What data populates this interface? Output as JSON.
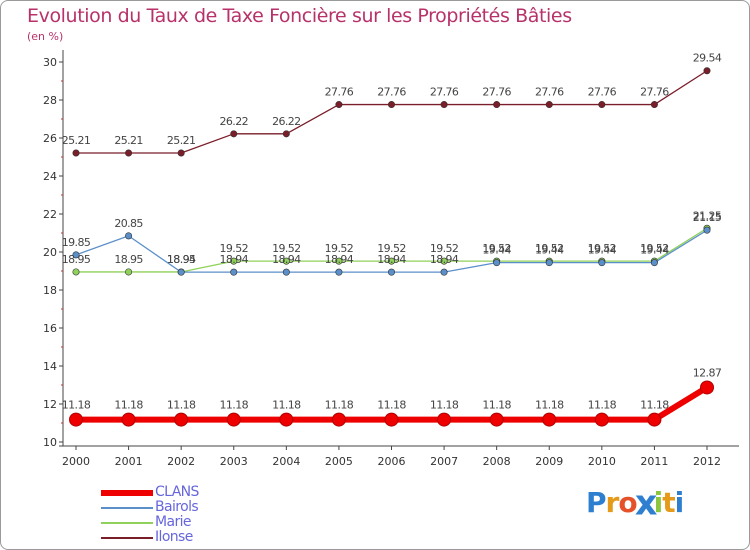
{
  "chart_data": {
    "type": "line",
    "title": "Evolution du Taux de Taxe Foncière sur les Propriétés Bâties",
    "ylabel": "(en %)",
    "xlabel": "",
    "ylim": [
      10,
      30
    ],
    "yticks": [
      "10",
      "12",
      "14",
      "16",
      "18",
      "20",
      "22",
      "24",
      "26",
      "28",
      "30"
    ],
    "categories": [
      "2000",
      "2001",
      "2002",
      "2003",
      "2004",
      "2005",
      "2006",
      "2007",
      "2008",
      "2009",
      "2010",
      "2011",
      "2012"
    ],
    "grid": false,
    "legend_position": "bottom-left",
    "series": [
      {
        "name": "Ilonse",
        "color": "#7a1e2a",
        "values": [
          25.21,
          25.21,
          25.21,
          26.22,
          26.22,
          27.76,
          27.76,
          27.76,
          27.76,
          27.76,
          27.76,
          27.76,
          29.54
        ],
        "labels": [
          "25.21",
          "25.21",
          "25.21",
          "26.22",
          "26.22",
          "27.76",
          "27.76",
          "27.76",
          "27.76",
          "27.76",
          "27.76",
          "27.76",
          "29.54"
        ]
      },
      {
        "name": "Marie",
        "color": "#8fd15a",
        "values": [
          18.95,
          18.95,
          18.95,
          19.52,
          19.52,
          19.52,
          19.52,
          19.52,
          19.52,
          19.52,
          19.52,
          19.52,
          21.25
        ],
        "labels": [
          "18.95",
          "18.95",
          "18.95",
          "19.52",
          "19.52",
          "19.52",
          "19.52",
          "19.52",
          "19.52",
          "19.52",
          "19.52",
          "19.52",
          "21.25"
        ]
      },
      {
        "name": "Bairols",
        "color": "#5b8fc9",
        "values": [
          19.85,
          20.85,
          18.94,
          18.94,
          18.94,
          18.94,
          18.94,
          18.94,
          19.44,
          19.44,
          19.44,
          19.44,
          21.15
        ],
        "labels": [
          "19.85",
          "20.85",
          "18.94",
          "18.94",
          "18.94",
          "18.94",
          "18.94",
          "18.94",
          "19.44",
          "19.44",
          "19.44",
          "19.44",
          "21.15"
        ]
      },
      {
        "name": "CLANS",
        "color": "#ee0000",
        "values": [
          11.18,
          11.18,
          11.18,
          11.18,
          11.18,
          11.18,
          11.18,
          11.18,
          11.18,
          11.18,
          11.18,
          11.18,
          12.87
        ],
        "labels": [
          "11.18",
          "11.18",
          "11.18",
          "11.18",
          "11.18",
          "11.18",
          "11.18",
          "11.18",
          "11.18",
          "11.18",
          "11.18",
          "11.18",
          "12.87"
        ]
      }
    ],
    "legend": [
      {
        "name": "CLANS",
        "color": "#ee0000",
        "text_color": "#6666dd"
      },
      {
        "name": "Bairols",
        "color": "#5b8fc9",
        "text_color": "#6666dd"
      },
      {
        "name": "Marie",
        "color": "#8fd15a",
        "text_color": "#6666dd"
      },
      {
        "name": "Ilonse",
        "color": "#7a1e2a",
        "text_color": "#6666dd"
      }
    ]
  },
  "title_color": "#b8326a",
  "logo": {
    "text": "Proxiti",
    "letters": [
      "P",
      "r",
      "o",
      "x",
      "i",
      "t",
      "i"
    ],
    "letter_colors": [
      "#2f7fd0",
      "#e69a1a",
      "#e5522a",
      "#2f7fd0",
      "#8cc63f",
      "#e69a1a",
      "#2f7fd0"
    ]
  }
}
